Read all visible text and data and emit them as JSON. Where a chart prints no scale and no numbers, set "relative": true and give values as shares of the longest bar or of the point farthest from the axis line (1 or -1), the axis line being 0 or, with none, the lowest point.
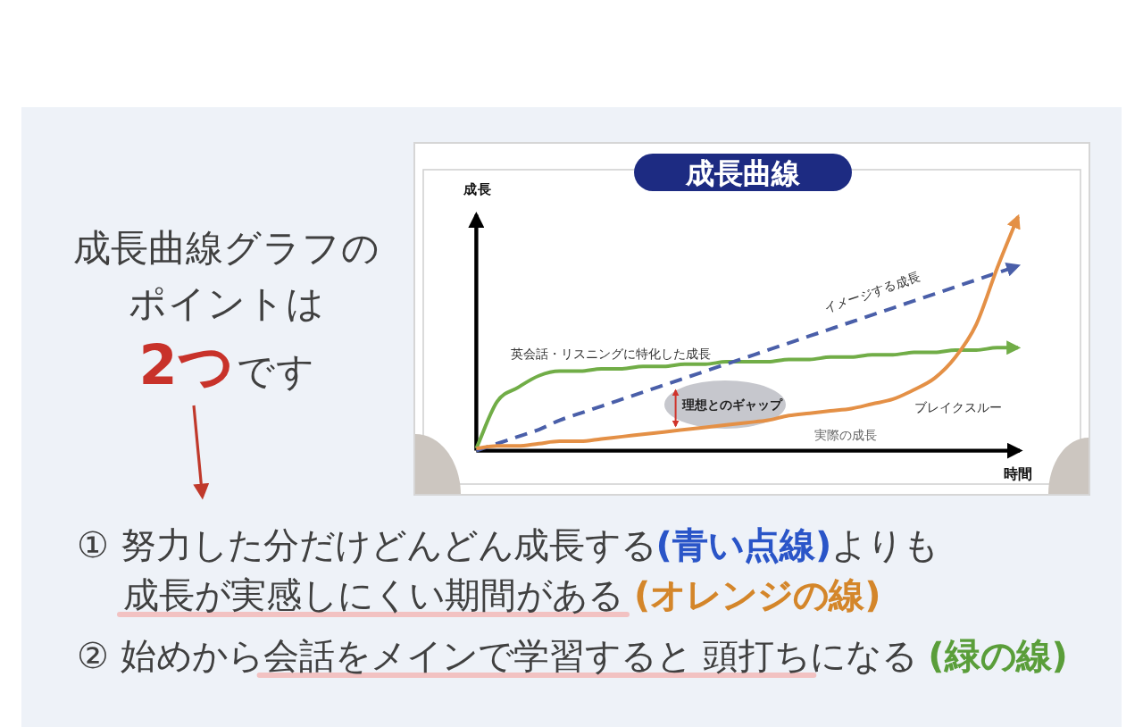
{
  "chart_data": {
    "type": "line",
    "relative": true,
    "title": "成長曲線",
    "xlabel": "時間",
    "ylabel": "成長",
    "line_style": "solid",
    "categories": [
      null,
      null,
      null,
      null,
      null,
      null,
      null,
      null,
      null,
      null,
      null,
      null,
      null,
      null,
      null,
      null,
      null,
      null,
      null,
      null,
      null,
      null,
      null,
      null,
      null,
      null,
      null
    ],
    "series": [
      {
        "name": "英会話・リスニングに特化した成長",
        "color": "#71ad47",
        "values": [
          0.01,
          0.21,
          0.27,
          0.32,
          0.34,
          0.34,
          0.35,
          0.35,
          0.36,
          0.36,
          0.37,
          0.37,
          0.38,
          0.38,
          0.38,
          0.39,
          0.39,
          0.4,
          0.4,
          0.41,
          0.41,
          0.42,
          0.42,
          0.43,
          0.43,
          0.44,
          0.44
        ]
      },
      {
        "name": "イメージする成長",
        "color": "#4a5fa9",
        "line_style": "dashed",
        "values": [
          0,
          0.03,
          0.06,
          0.09,
          0.13,
          0.16,
          0.19,
          0.22,
          0.25,
          0.28,
          0.31,
          0.34,
          0.37,
          0.4,
          0.43,
          0.46,
          0.49,
          0.52,
          0.55,
          0.58,
          0.61,
          0.64,
          0.67,
          0.7,
          0.73,
          0.76,
          0.79
        ]
      },
      {
        "name": "実際の成長",
        "color": "#e49046",
        "values": [
          0.01,
          0.02,
          0.02,
          0.03,
          0.04,
          0.04,
          0.05,
          0.06,
          0.07,
          0.08,
          0.09,
          0.1,
          0.11,
          0.12,
          0.13,
          0.15,
          0.16,
          0.17,
          0.18,
          0.2,
          0.22,
          0.26,
          0.31,
          0.4,
          0.54,
          0.78,
          1
        ]
      }
    ],
    "annotations": [
      "成長曲線グラフの",
      "ポイントは",
      "2つ",
      "です",
      "理想とのギャップ",
      "ブレイクスルー",
      "① 努力した分だけどんどん成長する",
      "(青い点線)",
      "よりも",
      "成長が実感しにくい期間がある",
      "(オレンジの線)",
      "② 始めから会話をメインで学習すると 頭打ちになる",
      "(緑の線)"
    ]
  }
}
